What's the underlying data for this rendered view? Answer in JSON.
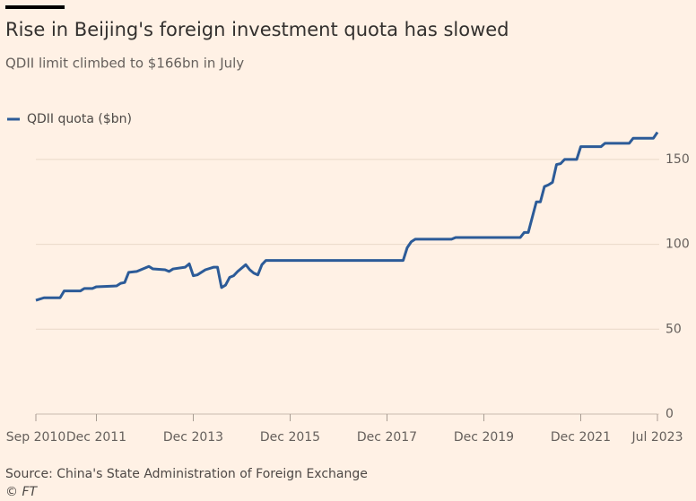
{
  "chart_data": {
    "type": "line",
    "title": "Rise in Beijing's foreign investment quota has slowed",
    "subtitle": "QDII limit climbed to $166bn in July",
    "source": "Source: China's State Administration of Foreign Exchange",
    "credit": "© FT",
    "x": [
      "2010-09",
      "2010-11",
      "2011-03",
      "2011-04",
      "2011-08",
      "2011-09",
      "2011-11",
      "2011-12",
      "2012-05",
      "2012-06",
      "2012-07",
      "2012-08",
      "2012-10",
      "2012-12",
      "2013-01",
      "2013-02",
      "2013-05",
      "2013-06",
      "2013-07",
      "2013-10",
      "2013-11",
      "2013-12",
      "2014-01",
      "2014-03",
      "2014-05",
      "2014-06",
      "2014-07",
      "2014-08",
      "2014-09",
      "2014-10",
      "2014-11",
      "2015-01",
      "2015-02",
      "2015-03",
      "2015-04",
      "2015-05",
      "2015-06",
      "2018-04",
      "2018-05",
      "2018-06",
      "2018-07",
      "2019-04",
      "2019-05",
      "2020-09",
      "2020-10",
      "2020-11",
      "2021-01",
      "2021-02",
      "2021-03",
      "2021-04",
      "2021-05",
      "2021-06",
      "2021-07",
      "2021-08",
      "2021-11",
      "2021-12",
      "2022-05",
      "2022-06",
      "2022-12",
      "2023-01",
      "2023-06",
      "2023-07"
    ],
    "series": [
      {
        "name": "QDII quota ($bn)",
        "color": "#2c5b98",
        "values": [
          67,
          68.5,
          68.5,
          72.5,
          72.5,
          74,
          74,
          75,
          75.5,
          77,
          77.5,
          83.5,
          84,
          86,
          87,
          85.5,
          85,
          84,
          85.5,
          86.5,
          88.5,
          81.5,
          82,
          85,
          86.5,
          86.5,
          74.5,
          76,
          80.5,
          81.5,
          84,
          88,
          85,
          83,
          82,
          88,
          90.5,
          90.5,
          98,
          101.5,
          103,
          103,
          104,
          104,
          107,
          107,
          125,
          125,
          134,
          135,
          136.5,
          147,
          147.5,
          150,
          150,
          157.5,
          157.5,
          159.5,
          159.5,
          162.5,
          162.5,
          166
        ]
      }
    ],
    "xlim": [
      "2010-09",
      "2023-07"
    ],
    "xticks": [
      {
        "value": "2010-09",
        "label": "Sep 2010"
      },
      {
        "value": "2011-12",
        "label": "Dec 2011"
      },
      {
        "value": "2013-12",
        "label": "Dec 2013"
      },
      {
        "value": "2015-12",
        "label": "Dec 2015"
      },
      {
        "value": "2017-12",
        "label": "Dec 2017"
      },
      {
        "value": "2019-12",
        "label": "Dec 2019"
      },
      {
        "value": "2021-12",
        "label": "Dec 2021"
      },
      {
        "value": "2023-07",
        "label": "Jul 2023"
      }
    ],
    "ylim": [
      0,
      170
    ],
    "yticks": [
      0,
      50,
      100,
      150
    ],
    "grid": true
  }
}
